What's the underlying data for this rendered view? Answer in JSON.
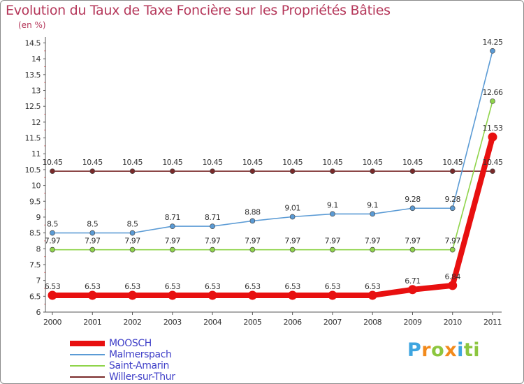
{
  "header": {
    "title": "Evolution du Taux de Taxe Foncière sur les Propriétés Bâties",
    "unit": "(en %)"
  },
  "colors": {
    "title": "#b5375a",
    "axis_text": "#333333",
    "legend_text": "#3f3fc8"
  },
  "logo": {
    "text": "Proxiti"
  },
  "chart_data": {
    "type": "line",
    "title": "Evolution du Taux de Taxe Foncière sur les Propriétés Bâties",
    "ylabel": "(en %)",
    "xlabel": "",
    "categories": [
      "2000",
      "2001",
      "2002",
      "2003",
      "2004",
      "2005",
      "2006",
      "2007",
      "2008",
      "2009",
      "2010",
      "2011"
    ],
    "ylim": [
      6,
      14.5
    ],
    "yticks": [
      "6",
      "6.5",
      "7",
      "7.5",
      "8",
      "8.5",
      "9",
      "9.5",
      "10",
      "10.5",
      "11",
      "11.5",
      "12",
      "12.5",
      "13",
      "13.5",
      "14",
      "14.5"
    ],
    "grid": false,
    "legend_position": "bottom-left",
    "series": [
      {
        "name": "MOOSCH",
        "color": "#e81010",
        "values": [
          6.53,
          6.53,
          6.53,
          6.53,
          6.53,
          6.53,
          6.53,
          6.53,
          6.53,
          6.71,
          6.84,
          11.53
        ],
        "labels": [
          "6.53",
          "6.53",
          "6.53",
          "6.53",
          "6.53",
          "6.53",
          "6.53",
          "6.53",
          "6.53",
          "6.71",
          "6.84",
          "11.53"
        ]
      },
      {
        "name": "Malmerspach",
        "color": "#5b9bd5",
        "values": [
          8.5,
          8.5,
          8.5,
          8.71,
          8.71,
          8.88,
          9.01,
          9.1,
          9.1,
          9.28,
          9.28,
          14.25
        ],
        "labels": [
          "8.5",
          "8.5",
          "8.5",
          "8.71",
          "8.71",
          "8.88",
          "9.01",
          "9.1",
          "9.1",
          "9.28",
          "9.28",
          "14.25"
        ]
      },
      {
        "name": "Saint-Amarin",
        "color": "#8fd44a",
        "values": [
          7.97,
          7.97,
          7.97,
          7.97,
          7.97,
          7.97,
          7.97,
          7.97,
          7.97,
          7.97,
          7.97,
          12.66
        ],
        "labels": [
          "7.97",
          "7.97",
          "7.97",
          "7.97",
          "7.97",
          "7.97",
          "7.97",
          "7.97",
          "7.97",
          "7.97",
          "7.97",
          "12.66"
        ]
      },
      {
        "name": "Willer-sur-Thur",
        "color": "#7a2a2a",
        "values": [
          10.45,
          10.45,
          10.45,
          10.45,
          10.45,
          10.45,
          10.45,
          10.45,
          10.45,
          10.45,
          10.45,
          10.45
        ],
        "labels": [
          "10.45",
          "10.45",
          "10.45",
          "10.45",
          "10.45",
          "10.45",
          "10.45",
          "10.45",
          "10.45",
          "10.45",
          "10.45",
          "10.45"
        ]
      }
    ]
  }
}
